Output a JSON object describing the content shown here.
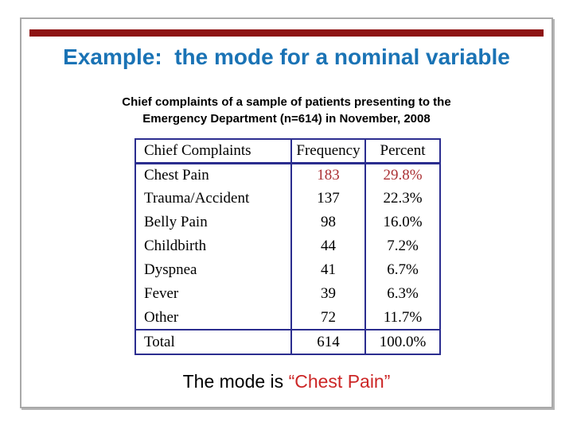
{
  "slide": {
    "title": "Example:  the mode for a nominal variable",
    "subtitle_line1": "Chief complaints of a sample of patients presenting to the",
    "subtitle_line2": "Emergency Department (n=614) in November, 2008",
    "caption_prefix": "The mode is ",
    "caption_highlight": "“Chest Pain”"
  },
  "table": {
    "headers": [
      "Chief Complaints",
      "Frequency",
      "Percent"
    ],
    "rows": [
      {
        "label": "Chest Pain",
        "frequency": "183",
        "percent": "29.8%",
        "highlight": true
      },
      {
        "label": "Trauma/Accident",
        "frequency": "137",
        "percent": "22.3%",
        "highlight": false
      },
      {
        "label": "Belly Pain",
        "frequency": "98",
        "percent": "16.0%",
        "highlight": false
      },
      {
        "label": "Childbirth",
        "frequency": "44",
        "percent": "7.2%",
        "highlight": false
      },
      {
        "label": "Dyspnea",
        "frequency": "41",
        "percent": "6.7%",
        "highlight": false
      },
      {
        "label": "Fever",
        "frequency": "39",
        "percent": "6.3%",
        "highlight": false
      },
      {
        "label": "Other",
        "frequency": "72",
        "percent": "11.7%",
        "highlight": false
      },
      {
        "label": "Total",
        "frequency": "614",
        "percent": "100.0%",
        "highlight": false
      }
    ]
  },
  "colors": {
    "accent_bar": "#8e1414",
    "title_blue": "#1a73b5",
    "table_border_navy": "#2b2d8f",
    "highlight_value_red": "#ab3134",
    "caption_red": "#cc2626",
    "slide_border_gray": "#a9a9a9"
  }
}
